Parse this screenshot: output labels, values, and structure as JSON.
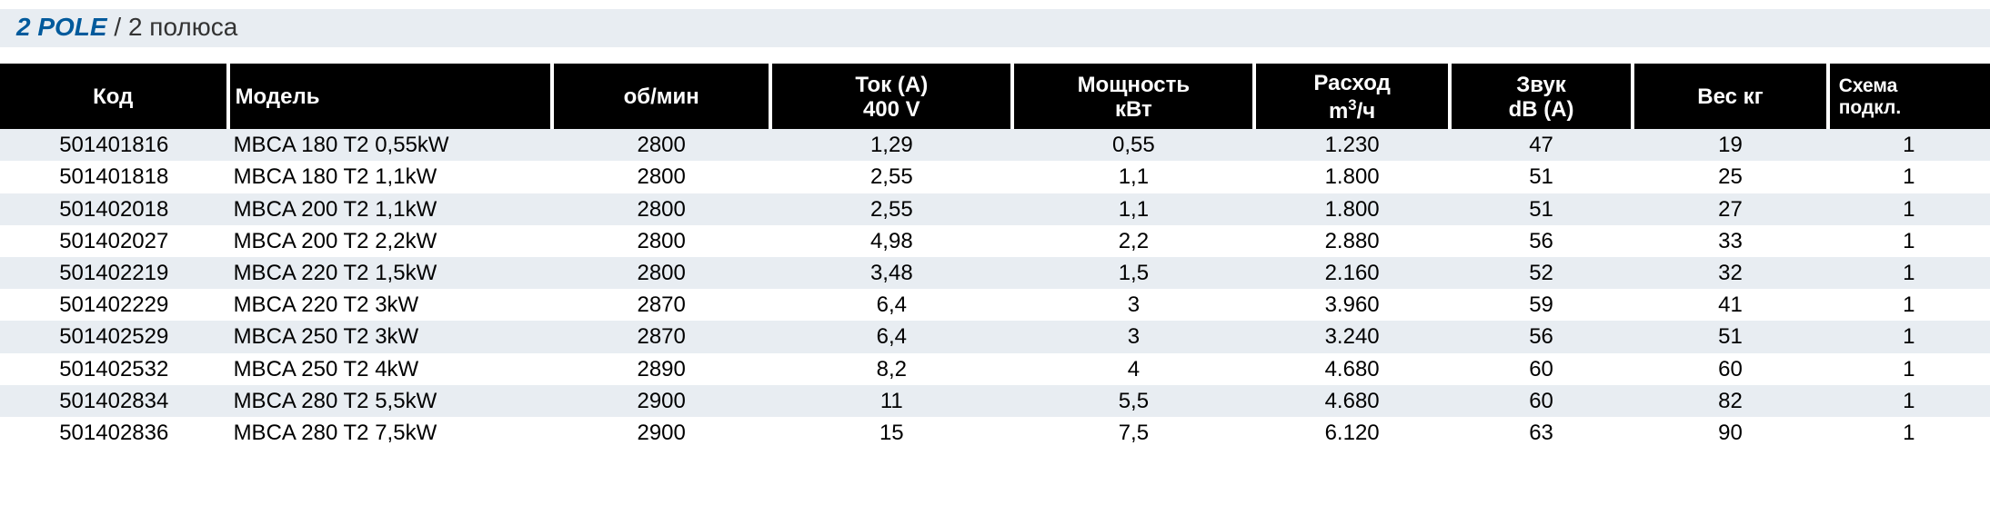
{
  "title": {
    "strong": "2 POLE",
    "sep": " / ",
    "sub": "2 полюса"
  },
  "table": {
    "columns": [
      {
        "key": "code",
        "label": "Код",
        "cls": "col-code"
      },
      {
        "key": "model",
        "label": "Модель",
        "cls": "col-model"
      },
      {
        "key": "rpm",
        "label": "об/мин",
        "cls": "col-rpm"
      },
      {
        "key": "cur",
        "label": "Ток  (A)<br>400 V",
        "cls": "col-cur"
      },
      {
        "key": "pow",
        "label": "Мощность<br>кВт",
        "cls": "col-pow"
      },
      {
        "key": "flow",
        "label": "Расход<br>m<span class=\"sup\">3</span>/ч",
        "cls": "col-flow"
      },
      {
        "key": "sound",
        "label": "Звук<br>dB (A)",
        "cls": "col-sound"
      },
      {
        "key": "weight",
        "label": "Вес кг",
        "cls": "col-weight"
      },
      {
        "key": "scheme",
        "label": "Схема<br>подкл.",
        "cls": "col-scheme"
      }
    ],
    "rows": [
      {
        "code": "501401816",
        "model": "MBCA 180 T2 0,55kW",
        "rpm": "2800",
        "cur": "1,29",
        "pow": "0,55",
        "flow": "1.230",
        "sound": "47",
        "weight": "19",
        "scheme": "1"
      },
      {
        "code": "501401818",
        "model": "MBCA 180 T2 1,1kW",
        "rpm": "2800",
        "cur": "2,55",
        "pow": "1,1",
        "flow": "1.800",
        "sound": "51",
        "weight": "25",
        "scheme": "1"
      },
      {
        "code": "501402018",
        "model": "MBCA 200 T2 1,1kW",
        "rpm": "2800",
        "cur": "2,55",
        "pow": "1,1",
        "flow": "1.800",
        "sound": "51",
        "weight": "27",
        "scheme": "1"
      },
      {
        "code": "501402027",
        "model": "MBCA 200 T2 2,2kW",
        "rpm": "2800",
        "cur": "4,98",
        "pow": "2,2",
        "flow": "2.880",
        "sound": "56",
        "weight": "33",
        "scheme": "1"
      },
      {
        "code": "501402219",
        "model": "MBCA 220 T2 1,5kW",
        "rpm": "2800",
        "cur": "3,48",
        "pow": "1,5",
        "flow": "2.160",
        "sound": "52",
        "weight": "32",
        "scheme": "1"
      },
      {
        "code": "501402229",
        "model": "MBCA 220 T2 3kW",
        "rpm": "2870",
        "cur": "6,4",
        "pow": "3",
        "flow": "3.960",
        "sound": "59",
        "weight": "41",
        "scheme": "1"
      },
      {
        "code": "501402529",
        "model": "MBCA 250 T2 3kW",
        "rpm": "2870",
        "cur": "6,4",
        "pow": "3",
        "flow": "3.240",
        "sound": "56",
        "weight": "51",
        "scheme": "1"
      },
      {
        "code": "501402532",
        "model": "MBCA 250 T2 4kW",
        "rpm": "2890",
        "cur": "8,2",
        "pow": "4",
        "flow": "4.680",
        "sound": "60",
        "weight": "60",
        "scheme": "1"
      },
      {
        "code": "501402834",
        "model": "MBCA 280 T2 5,5kW",
        "rpm": "2900",
        "cur": "11",
        "pow": "5,5",
        "flow": "4.680",
        "sound": "60",
        "weight": "82",
        "scheme": "1"
      },
      {
        "code": "501402836",
        "model": "MBCA 280 T2 7,5kW",
        "rpm": "2900",
        "cur": "15",
        "pow": "7,5",
        "flow": "6.120",
        "sound": "63",
        "weight": "90",
        "scheme": "1"
      }
    ],
    "stripe_colors": {
      "even": "#e8edf2",
      "odd": "#ffffff"
    },
    "header_bg": "#000000",
    "header_fg": "#ffffff"
  }
}
